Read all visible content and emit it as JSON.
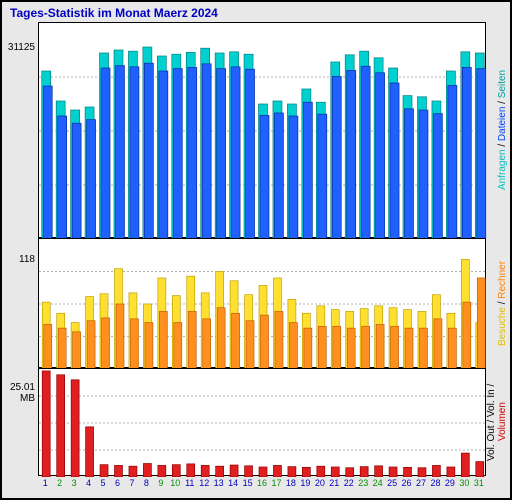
{
  "title": "Tages-Statistik im Monat Maerz 2024",
  "title_color": "#0000c0",
  "title_fontsize": 12,
  "background_color": "#e8e8e8",
  "panel_background": "#ffffff",
  "grid_color": "#b0b0b0",
  "days": [
    1,
    2,
    3,
    4,
    5,
    6,
    7,
    8,
    9,
    10,
    11,
    12,
    13,
    14,
    15,
    16,
    17,
    18,
    19,
    20,
    21,
    22,
    23,
    24,
    25,
    26,
    27,
    28,
    29,
    30,
    31
  ],
  "weekend_days": [
    2,
    3,
    9,
    10,
    16,
    17,
    23,
    24,
    30,
    31
  ],
  "day_label_color": "#0000c0",
  "weekend_label_color": "#009000",
  "top_panel": {
    "y_label": "31125",
    "ymax": 36000,
    "grid_values": [
      9000,
      18000,
      27000
    ],
    "series_anfragen": {
      "color_fill": "#00d0d0",
      "color_stroke": "#008080",
      "values": [
        28000,
        23000,
        21500,
        22000,
        31000,
        31500,
        31300,
        32000,
        30500,
        30800,
        31100,
        31800,
        31000,
        31200,
        30800,
        22500,
        23000,
        22500,
        25000,
        22800,
        29500,
        30700,
        31300,
        30200,
        28500,
        23900,
        23700,
        23000,
        28000,
        31200,
        31000
      ]
    },
    "series_dateien": {
      "color_fill": "#2060ff",
      "color_stroke": "#0030a0",
      "values": [
        25500,
        20500,
        19300,
        19900,
        28500,
        28900,
        28700,
        29300,
        28000,
        28400,
        28600,
        29200,
        28400,
        28700,
        28300,
        20600,
        21000,
        20500,
        22800,
        20800,
        27100,
        28100,
        28800,
        27700,
        26000,
        21700,
        21500,
        20900,
        25600,
        28600,
        28400
      ]
    },
    "legend": [
      {
        "label": "Anfragen",
        "color": "#00c0c0"
      },
      {
        "label": "Dateien",
        "color": "#0040ff"
      },
      {
        "label": "Seiten",
        "color": "#00a0a0"
      }
    ]
  },
  "mid_panel": {
    "y_label": "118",
    "ymax": 140,
    "grid_values": [
      35,
      70,
      105
    ],
    "series_besuche": {
      "color_fill": "#ffe030",
      "color_stroke": "#c0a000",
      "values": [
        72,
        60,
        50,
        78,
        81,
        108,
        82,
        70,
        98,
        79,
        100,
        82,
        105,
        95,
        80,
        90,
        98,
        75,
        60,
        68,
        64,
        62,
        65,
        68,
        66,
        64,
        62,
        80,
        60,
        118,
        50
      ]
    },
    "series_rechner": {
      "color_fill": "#ff9020",
      "color_stroke": "#c06000",
      "values": [
        48,
        44,
        40,
        52,
        55,
        70,
        54,
        50,
        62,
        50,
        62,
        54,
        66,
        60,
        52,
        58,
        62,
        50,
        44,
        46,
        46,
        44,
        46,
        48,
        46,
        44,
        44,
        54,
        44,
        72,
        98
      ]
    },
    "legend": [
      {
        "label": "Besuche",
        "color": "#e0c000"
      },
      {
        "label": "Rechner",
        "color": "#ff8000"
      }
    ]
  },
  "bot_panel": {
    "y_label": "25.01 MB",
    "ymax": 28,
    "grid_values": [
      7,
      14,
      21
    ],
    "series_volumen": {
      "color_fill": "#e02020",
      "color_stroke": "#900000",
      "values": [
        27.5,
        26.5,
        25.2,
        13.0,
        3.2,
        3.0,
        2.8,
        3.5,
        3.0,
        3.2,
        3.4,
        3.0,
        2.8,
        3.1,
        2.9,
        2.6,
        3.0,
        2.7,
        2.5,
        2.8,
        2.6,
        2.4,
        2.7,
        2.9,
        2.6,
        2.5,
        2.4,
        3.0,
        2.6,
        6.2,
        4.0
      ]
    },
    "legend": [
      {
        "label": "Vol. Out",
        "color": "#000000"
      },
      {
        "label": "Vol. In",
        "color": "#000000"
      },
      {
        "label": "Volumen",
        "color": "#d00000"
      }
    ]
  }
}
